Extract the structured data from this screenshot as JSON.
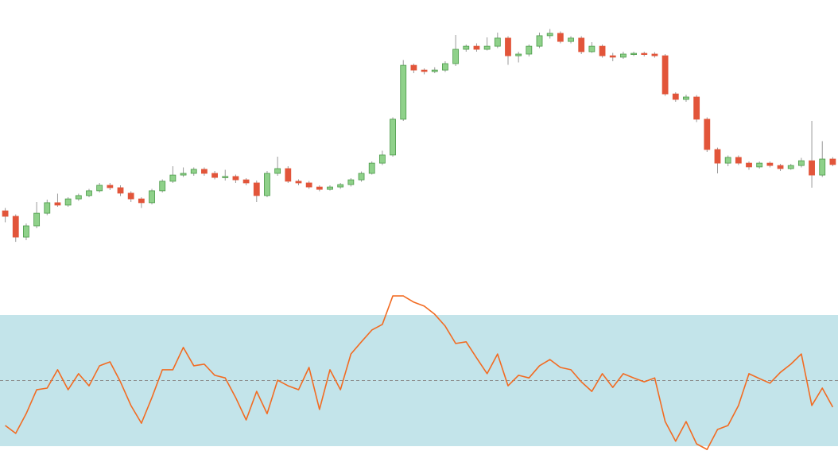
{
  "chart_data": [
    {
      "type": "candlestick",
      "ylim": [
        0,
        100
      ],
      "up_color": "#8fd18a",
      "up_edge": "#4a9a48",
      "down_color": "#e2553a",
      "wick_color": "#9a9a9a",
      "open": [
        18.3,
        16.0,
        7.3,
        12.0,
        17.3,
        21.7,
        20.7,
        23.3,
        24.7,
        26.7,
        29.0,
        28.0,
        25.7,
        23.3,
        21.7,
        26.7,
        30.7,
        33.3,
        34.0,
        35.7,
        34.0,
        32.3,
        32.7,
        31.3,
        30.0,
        24.7,
        34.0,
        36.0,
        30.7,
        30.0,
        28.3,
        27.3,
        28.3,
        29.3,
        31.3,
        34.0,
        38.3,
        41.7,
        56.7,
        79.3,
        77.3,
        76.7,
        77.3,
        80.0,
        86.0,
        87.3,
        86.0,
        87.3,
        90.7,
        83.3,
        84.0,
        87.3,
        91.7,
        92.7,
        89.3,
        90.7,
        85.0,
        87.3,
        83.3,
        82.7,
        84.0,
        84.3,
        84.0,
        83.3,
        67.3,
        65.0,
        66.0,
        56.7,
        44.0,
        38.3,
        40.7,
        38.3,
        36.7,
        38.3,
        37.3,
        36.0,
        37.3,
        39.3,
        33.3,
        40.0
      ],
      "high": [
        19.5,
        16.8,
        13.0,
        22.0,
        23.0,
        25.5,
        24.0,
        25.5,
        27.5,
        30.0,
        30.0,
        29.0,
        26.5,
        24.0,
        27.5,
        31.5,
        37.0,
        36.5,
        36.5,
        36.5,
        35.0,
        35.5,
        33.5,
        32.0,
        31.0,
        35.0,
        41.0,
        37.0,
        31.5,
        30.8,
        29.0,
        29.0,
        30.0,
        32.0,
        34.8,
        39.0,
        43.5,
        57.5,
        81.5,
        80.0,
        78.0,
        78.5,
        81.0,
        92.0,
        88.0,
        88.5,
        91.0,
        93.0,
        91.5,
        85.0,
        88.0,
        93.0,
        94.5,
        93.5,
        91.5,
        91.5,
        89.0,
        88.0,
        84.5,
        85.0,
        85.0,
        85.0,
        84.8,
        84.0,
        68.0,
        67.0,
        66.8,
        57.5,
        44.8,
        41.5,
        41.5,
        39.0,
        39.0,
        39.0,
        38.0,
        38.0,
        40.5,
        56.0,
        47.5,
        40.8
      ],
      "low": [
        13.5,
        5.3,
        6.0,
        11.0,
        16.5,
        20.0,
        20.0,
        22.5,
        24.0,
        26.0,
        27.0,
        24.5,
        22.0,
        19.5,
        21.0,
        26.0,
        30.0,
        32.5,
        33.0,
        33.0,
        31.5,
        31.0,
        30.0,
        29.0,
        22.0,
        24.0,
        33.0,
        30.0,
        29.0,
        27.5,
        26.5,
        26.8,
        27.5,
        28.5,
        30.5,
        33.5,
        37.5,
        41.0,
        56.0,
        76.0,
        75.5,
        76.0,
        76.5,
        79.0,
        85.0,
        85.0,
        85.5,
        86.5,
        79.5,
        80.5,
        83.0,
        86.5,
        90.5,
        88.5,
        88.5,
        84.0,
        84.5,
        82.5,
        81.0,
        82.0,
        83.2,
        83.0,
        82.5,
        66.5,
        64.0,
        64.0,
        55.5,
        43.0,
        34.0,
        37.0,
        37.5,
        35.5,
        36.0,
        36.5,
        35.0,
        35.5,
        36.5,
        28.0,
        32.5,
        37.0
      ],
      "close": [
        16.0,
        7.3,
        12.0,
        17.3,
        21.7,
        20.7,
        23.3,
        24.7,
        26.7,
        29.0,
        28.0,
        25.7,
        23.3,
        21.7,
        26.7,
        30.7,
        33.3,
        34.0,
        35.7,
        34.0,
        32.3,
        32.7,
        31.3,
        30.0,
        24.7,
        34.0,
        36.0,
        30.7,
        30.0,
        28.3,
        27.3,
        28.3,
        29.3,
        31.3,
        34.0,
        38.3,
        41.7,
        56.7,
        79.3,
        77.3,
        76.7,
        77.3,
        80.0,
        86.0,
        87.3,
        86.0,
        87.3,
        90.7,
        83.3,
        84.0,
        87.3,
        91.7,
        92.7,
        89.3,
        90.7,
        85.0,
        87.3,
        83.3,
        82.7,
        84.0,
        84.3,
        84.0,
        83.3,
        67.3,
        65.0,
        66.0,
        56.7,
        44.0,
        38.3,
        40.7,
        38.3,
        36.7,
        38.3,
        37.3,
        36.0,
        37.3,
        39.3,
        33.3,
        40.0,
        37.7
      ]
    },
    {
      "type": "line",
      "ylim": [
        22,
        86
      ],
      "color": "#f26b22",
      "band": {
        "lower": 30,
        "upper": 70,
        "color": "#c3e4ea"
      },
      "midline": 50,
      "midline_color": "#8a8a8a",
      "values": [
        36.3,
        33.9,
        39.9,
        47.2,
        47.7,
        53.3,
        47.2,
        52.1,
        48.4,
        54.5,
        55.7,
        49.6,
        42.4,
        37.0,
        44.8,
        53.3,
        53.3,
        60.1,
        54.5,
        55.0,
        51.6,
        50.8,
        44.8,
        38.0,
        46.7,
        39.9,
        50.1,
        48.4,
        47.2,
        54.0,
        41.2,
        53.3,
        47.2,
        58.1,
        61.8,
        65.4,
        67.1,
        75.8,
        75.8,
        73.9,
        72.7,
        70.2,
        66.6,
        61.3,
        61.8,
        56.9,
        52.1,
        58.1,
        48.4,
        51.6,
        50.8,
        54.5,
        56.4,
        54.0,
        53.3,
        49.6,
        46.7,
        52.1,
        47.9,
        52.1,
        50.8,
        49.6,
        50.8,
        37.5,
        31.5,
        37.5,
        30.7,
        29.0,
        35.1,
        36.3,
        42.4,
        52.1,
        50.6,
        49.2,
        52.5,
        55.0,
        58.1,
        42.4,
        47.7,
        41.9
      ]
    }
  ]
}
